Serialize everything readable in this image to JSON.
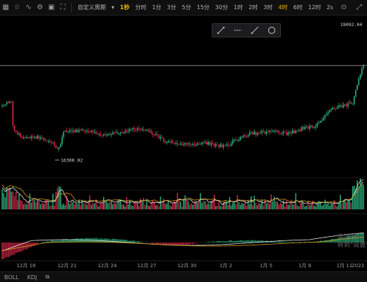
{
  "toolbar": {
    "indicator_label": "自定义周期",
    "intervals": [
      "1秒",
      "分时",
      "1分",
      "3分",
      "5分",
      "15分",
      "30分",
      "1时",
      "2时",
      "3时",
      "4时",
      "6时",
      "12时"
    ],
    "active_index": 0,
    "current_index": 10,
    "sec_label": "2s",
    "icons": [
      "chart-style-icon",
      "favorite-star-icon",
      "indicators-icon",
      "settings-icon",
      "layout-icon",
      "fullscreen-icon"
    ]
  },
  "price_labels": {
    "high": "19092.04",
    "low": "16300.02"
  },
  "x_axis_labels": [
    "12月 18",
    "12月 21",
    "12月 24",
    "12月 27",
    "12月 30",
    "1月 2",
    "1月 5",
    "1月 8",
    "1月 11",
    "2023"
  ],
  "indicators": {
    "boll": "BOLL",
    "kdj": "KDJ"
  },
  "watermark": {
    "line1": "激活 Wi",
    "line2": "转到\"设置\"以"
  },
  "colors": {
    "up": "#2ebd85",
    "down": "#e0294a",
    "accent": "#f0b90b"
  }
}
